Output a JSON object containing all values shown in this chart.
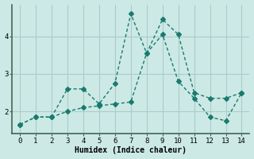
{
  "line1_x": [
    0,
    1,
    2,
    3,
    4,
    5,
    6,
    7,
    8,
    9,
    10,
    11,
    12,
    13,
    14
  ],
  "line1_y": [
    1.65,
    1.85,
    1.85,
    2.6,
    2.6,
    2.2,
    2.75,
    4.6,
    3.55,
    4.05,
    2.8,
    2.35,
    1.85,
    1.75,
    2.5
  ],
  "line2_x": [
    0,
    1,
    2,
    3,
    4,
    5,
    6,
    7,
    8,
    9,
    10,
    11,
    12,
    13,
    14
  ],
  "line2_y": [
    1.65,
    1.85,
    1.85,
    2.0,
    2.1,
    2.15,
    2.2,
    2.25,
    3.55,
    4.45,
    4.05,
    2.5,
    2.35,
    2.35,
    2.5
  ],
  "line_color": "#1a7a6e",
  "bg_color": "#cce9e5",
  "grid_color": "#aaccca",
  "xlabel": "Humidex (Indice chaleur)",
  "xlim": [
    -0.5,
    14.5
  ],
  "ylim": [
    1.4,
    4.85
  ],
  "yticks": [
    2,
    3,
    4
  ],
  "xticks": [
    0,
    1,
    2,
    3,
    4,
    5,
    6,
    7,
    8,
    9,
    10,
    11,
    12,
    13,
    14
  ],
  "markersize": 3,
  "linewidth": 1.0
}
